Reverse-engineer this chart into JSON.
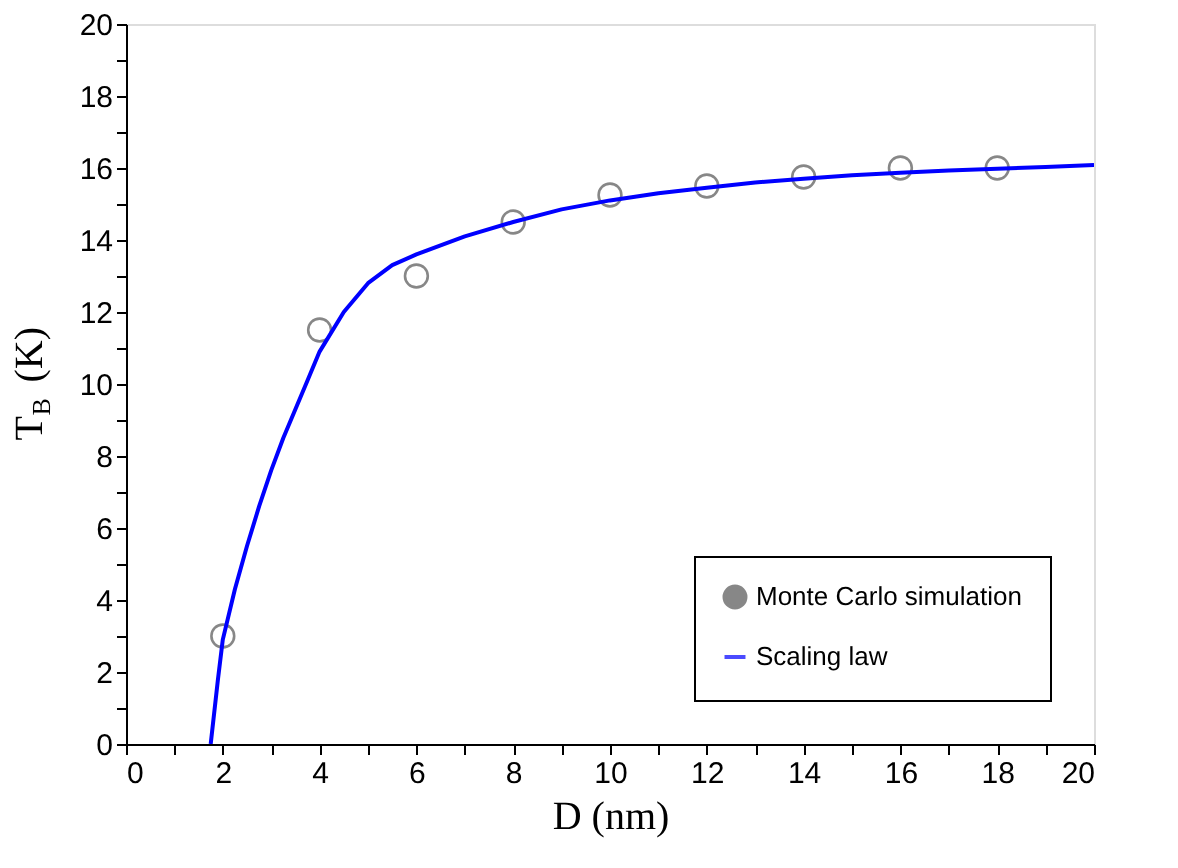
{
  "chart_data": {
    "type": "scatter",
    "xlabel": "D (nm)",
    "ylabel": "T$_{B}$ (K)",
    "xlim": [
      0,
      20
    ],
    "ylim": [
      0,
      20
    ],
    "xticks": [
      0,
      {
        "value": 1,
        "label": null
      },
      2,
      {
        "value": 3,
        "label": null
      },
      4,
      {
        "value": 5,
        "label": null
      },
      6,
      {
        "value": 7,
        "label": null
      },
      8,
      {
        "value": 9,
        "label": null
      },
      10,
      {
        "value": 11,
        "label": null
      },
      12,
      {
        "value": 13,
        "label": null
      },
      14,
      {
        "value": 15,
        "label": null
      },
      16,
      {
        "value": 17,
        "label": null
      },
      18,
      {
        "value": 19,
        "label": null
      },
      20
    ],
    "yticks": [
      0,
      {
        "value": 1,
        "label": null
      },
      2,
      {
        "value": 3,
        "label": null
      },
      4,
      {
        "value": 5,
        "label": null
      },
      6,
      {
        "value": 7,
        "label": null
      },
      8,
      {
        "value": 9,
        "label": null
      },
      10,
      {
        "value": 11,
        "label": null
      },
      12,
      {
        "value": 13,
        "label": null
      },
      14,
      {
        "value": 15,
        "label": null
      },
      16,
      {
        "value": 17,
        "label": null
      },
      18,
      {
        "value": 19,
        "label": null
      },
      20
    ],
    "grid": false,
    "legend": "bottom right",
    "series": [
      {
        "name": "Monte Carlo simulation",
        "marker": "circle",
        "color": "#555555",
        "x": [
          2,
          4,
          6,
          8,
          10,
          12,
          14,
          16,
          18
        ],
        "values": [
          3.0,
          11.5,
          13.0,
          14.5,
          15.25,
          15.5,
          15.75,
          16.0,
          16.0
        ]
      },
      {
        "name": "Scaling law",
        "type": "line",
        "marker": "none",
        "line_style": "solid",
        "color": "#0000ff",
        "x": [
          1.75,
          1.9,
          2,
          2.25,
          2.5,
          2.75,
          3,
          3.25,
          3.5,
          3.75,
          4,
          4.5,
          5,
          5.5,
          6,
          7,
          8,
          9,
          10,
          11,
          12,
          13,
          14,
          15,
          16,
          17,
          18,
          19,
          20
        ],
        "values": [
          0,
          1.8,
          2.9,
          4.3,
          5.5,
          6.6,
          7.6,
          8.5,
          9.3,
          10.1,
          10.9,
          12.0,
          12.8,
          13.3,
          13.6,
          14.1,
          14.5,
          14.85,
          15.1,
          15.3,
          15.45,
          15.6,
          15.7,
          15.8,
          15.87,
          15.93,
          15.98,
          16.03,
          16.08
        ]
      }
    ]
  }
}
